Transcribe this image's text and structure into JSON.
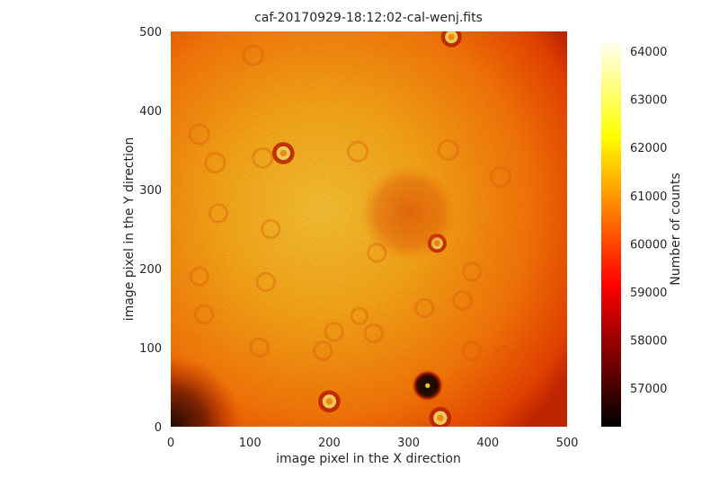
{
  "chart_data": {
    "type": "heatmap",
    "title": "caf-20170929-18:12:02-cal-wenj.fits",
    "xlabel": "image pixel in the X direction",
    "ylabel": "image pixel in the Y direction",
    "xlim": [
      0,
      500
    ],
    "ylim": [
      0,
      500
    ],
    "xticks": [
      "0",
      "100",
      "200",
      "300",
      "400",
      "500"
    ],
    "yticks": [
      "0",
      "100",
      "200",
      "300",
      "400",
      "500"
    ],
    "grid": false,
    "colormap": "hot",
    "colorbar": {
      "label": "Number of counts",
      "range": [
        56200,
        64300
      ],
      "ticks": [
        "57000",
        "58000",
        "59000",
        "60000",
        "61000",
        "62000",
        "63000",
        "64000"
      ]
    },
    "features": [
      {
        "kind": "bright-ring",
        "x": 142,
        "y": 346,
        "r": 14
      },
      {
        "kind": "bright-ring",
        "x": 336,
        "y": 232,
        "r": 12
      },
      {
        "kind": "bright-ring",
        "x": 354,
        "y": 493,
        "r": 13
      },
      {
        "kind": "bright-ring",
        "x": 200,
        "y": 32,
        "r": 14
      },
      {
        "kind": "bright-ring",
        "x": 340,
        "y": 11,
        "r": 14
      },
      {
        "kind": "dark-spot",
        "x": 324,
        "y": 52,
        "r": 20
      },
      {
        "kind": "dark-blob",
        "x": 300,
        "y": 270,
        "r": 60
      },
      {
        "kind": "faint-ring",
        "x": 104,
        "y": 470,
        "r": 12
      },
      {
        "kind": "faint-ring",
        "x": 36,
        "y": 370,
        "r": 12
      },
      {
        "kind": "faint-ring",
        "x": 56,
        "y": 334,
        "r": 12
      },
      {
        "kind": "faint-ring",
        "x": 116,
        "y": 340,
        "r": 12
      },
      {
        "kind": "faint-ring",
        "x": 350,
        "y": 350,
        "r": 12
      },
      {
        "kind": "faint-ring",
        "x": 416,
        "y": 316,
        "r": 12
      },
      {
        "kind": "faint-ring",
        "x": 236,
        "y": 348,
        "r": 12
      },
      {
        "kind": "faint-ring",
        "x": 60,
        "y": 270,
        "r": 11
      },
      {
        "kind": "faint-ring",
        "x": 126,
        "y": 250,
        "r": 11
      },
      {
        "kind": "faint-ring",
        "x": 36,
        "y": 190,
        "r": 11
      },
      {
        "kind": "faint-ring",
        "x": 120,
        "y": 183,
        "r": 11
      },
      {
        "kind": "faint-ring",
        "x": 260,
        "y": 220,
        "r": 11
      },
      {
        "kind": "faint-ring",
        "x": 380,
        "y": 196,
        "r": 11
      },
      {
        "kind": "faint-ring",
        "x": 368,
        "y": 160,
        "r": 11
      },
      {
        "kind": "faint-ring",
        "x": 320,
        "y": 150,
        "r": 11
      },
      {
        "kind": "faint-ring",
        "x": 42,
        "y": 142,
        "r": 11
      },
      {
        "kind": "faint-ring",
        "x": 256,
        "y": 118,
        "r": 11
      },
      {
        "kind": "faint-ring",
        "x": 206,
        "y": 120,
        "r": 11
      },
      {
        "kind": "faint-ring",
        "x": 192,
        "y": 96,
        "r": 11
      },
      {
        "kind": "faint-ring",
        "x": 380,
        "y": 96,
        "r": 11
      },
      {
        "kind": "faint-ring",
        "x": 112,
        "y": 100,
        "r": 11
      },
      {
        "kind": "faint-ring",
        "x": 420,
        "y": 90,
        "r": 10
      },
      {
        "kind": "faint-ring",
        "x": 238,
        "y": 140,
        "r": 10
      }
    ]
  }
}
